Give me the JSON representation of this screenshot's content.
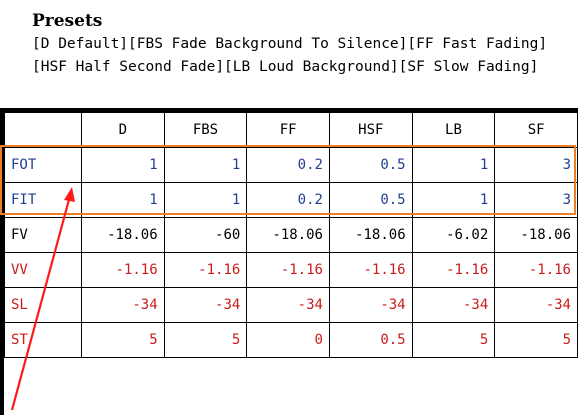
{
  "presets": {
    "title": "Presets",
    "legend": "[D Default][FBS Fade Background To Silence][FF Fast Fading][HSF Half Second Fade][LB Loud Background][SF Slow Fading]"
  },
  "table": {
    "columns": [
      "D",
      "FBS",
      "FF",
      "HSF",
      "LB",
      "SF"
    ],
    "rows": [
      {
        "label": "FOT",
        "values": [
          "1",
          "1",
          "0.2",
          "0.5",
          "1",
          "3"
        ]
      },
      {
        "label": "FIT",
        "values": [
          "1",
          "1",
          "0.2",
          "0.5",
          "1",
          "3"
        ]
      },
      {
        "label": "FV",
        "values": [
          "-18.06",
          "-60",
          "-18.06",
          "-18.06",
          "-6.02",
          "-18.06"
        ]
      },
      {
        "label": "VV",
        "values": [
          "-1.16",
          "-1.16",
          "-1.16",
          "-1.16",
          "-1.16",
          "-1.16"
        ]
      },
      {
        "label": "SL",
        "values": [
          "-34",
          "-34",
          "-34",
          "-34",
          "-34",
          "-34"
        ]
      },
      {
        "label": "ST",
        "values": [
          "5",
          "5",
          "0",
          "0.5",
          "5",
          "5"
        ]
      }
    ]
  },
  "colors": {
    "highlight_box": "#ef7d22",
    "arrow": "#ff1a1a",
    "blue_text": "#1f3f8f",
    "red_text": "#cc1b1b"
  }
}
